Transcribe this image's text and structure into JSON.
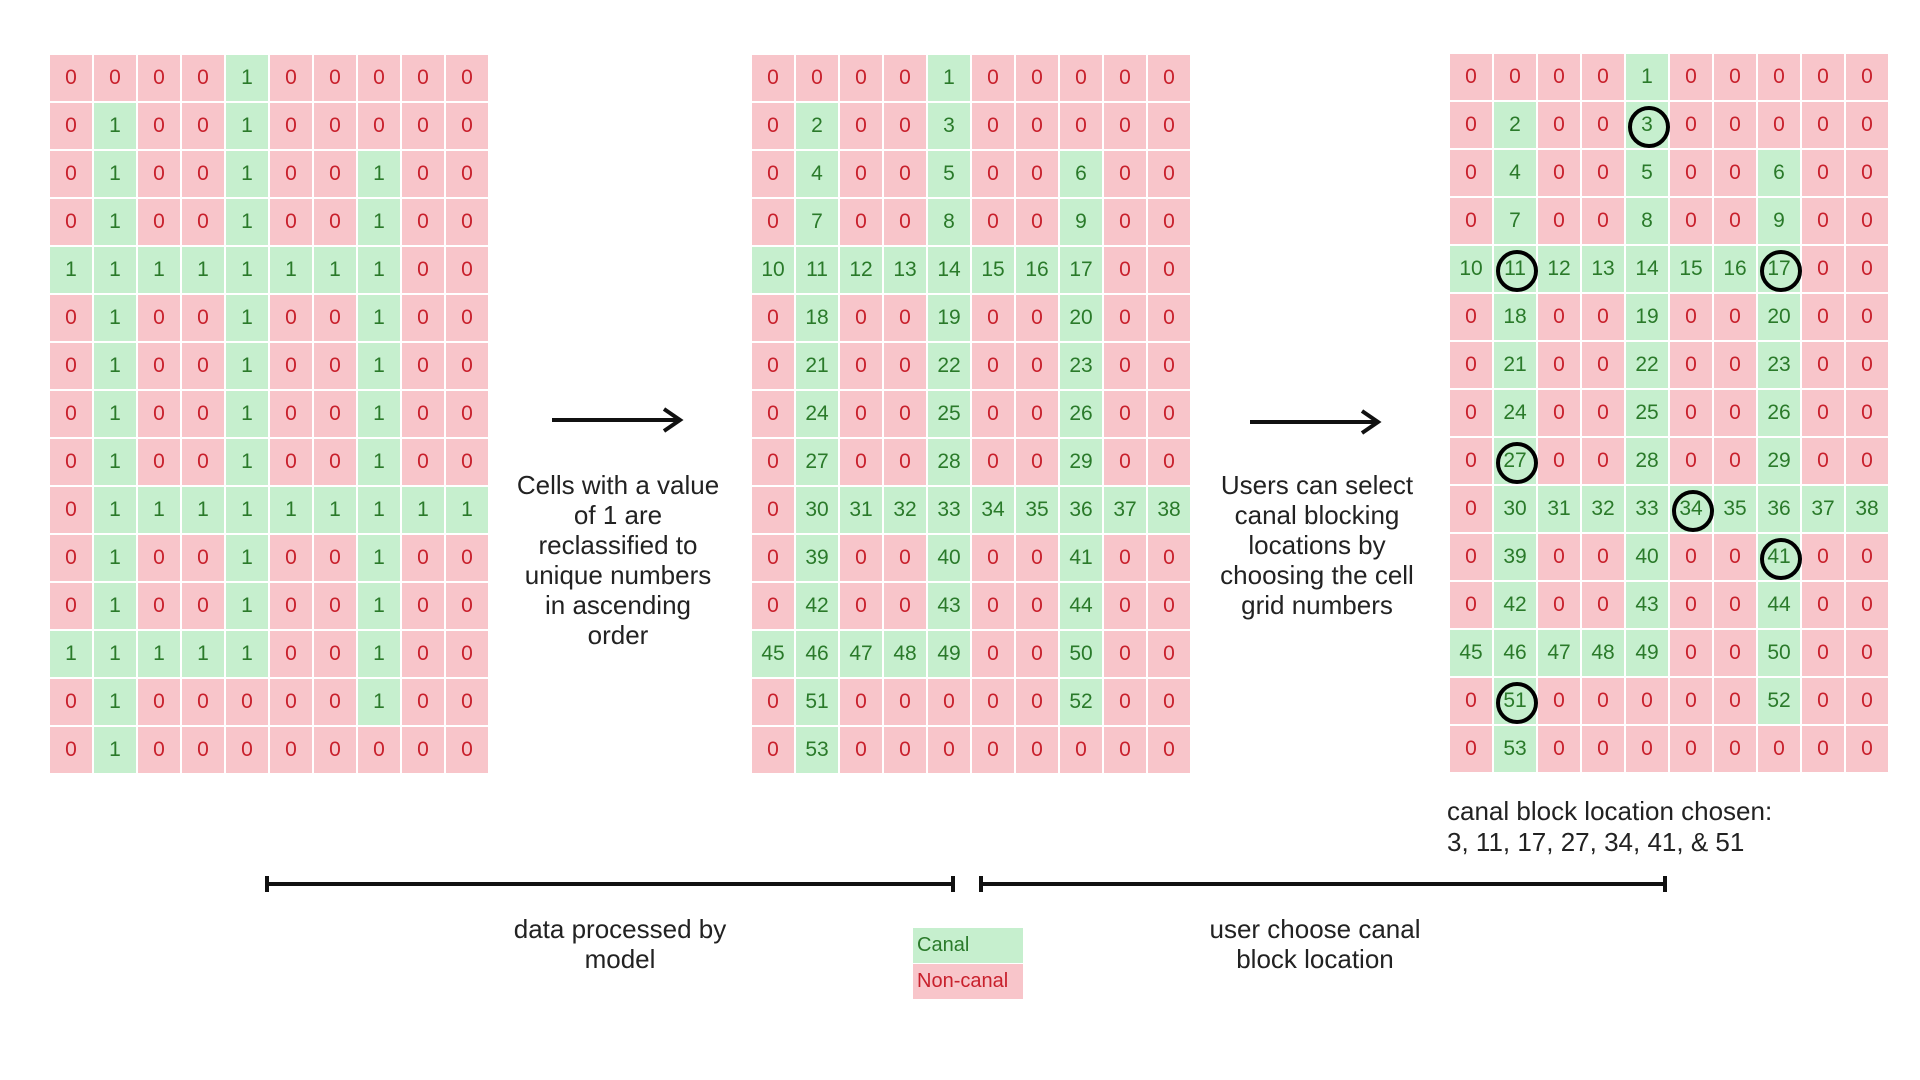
{
  "legend": {
    "canal_label": "Canal",
    "noncanal_label": "Non-canal",
    "canal_color": "#c6efce",
    "canal_text_color": "#2a7a2a",
    "noncanal_color": "#f8c5ca",
    "noncanal_text_color": "#c8202c"
  },
  "grids": {
    "input": [
      [
        0,
        0,
        0,
        0,
        1,
        0,
        0,
        0,
        0,
        0
      ],
      [
        0,
        1,
        0,
        0,
        1,
        0,
        0,
        0,
        0,
        0
      ],
      [
        0,
        1,
        0,
        0,
        1,
        0,
        0,
        1,
        0,
        0
      ],
      [
        0,
        1,
        0,
        0,
        1,
        0,
        0,
        1,
        0,
        0
      ],
      [
        1,
        1,
        1,
        1,
        1,
        1,
        1,
        1,
        0,
        0
      ],
      [
        0,
        1,
        0,
        0,
        1,
        0,
        0,
        1,
        0,
        0
      ],
      [
        0,
        1,
        0,
        0,
        1,
        0,
        0,
        1,
        0,
        0
      ],
      [
        0,
        1,
        0,
        0,
        1,
        0,
        0,
        1,
        0,
        0
      ],
      [
        0,
        1,
        0,
        0,
        1,
        0,
        0,
        1,
        0,
        0
      ],
      [
        0,
        1,
        1,
        1,
        1,
        1,
        1,
        1,
        1,
        1
      ],
      [
        0,
        1,
        0,
        0,
        1,
        0,
        0,
        1,
        0,
        0
      ],
      [
        0,
        1,
        0,
        0,
        1,
        0,
        0,
        1,
        0,
        0
      ],
      [
        1,
        1,
        1,
        1,
        1,
        0,
        0,
        1,
        0,
        0
      ],
      [
        0,
        1,
        0,
        0,
        0,
        0,
        0,
        1,
        0,
        0
      ],
      [
        0,
        1,
        0,
        0,
        0,
        0,
        0,
        0,
        0,
        0
      ]
    ],
    "numbered": [
      [
        0,
        0,
        0,
        0,
        1,
        0,
        0,
        0,
        0,
        0
      ],
      [
        0,
        2,
        0,
        0,
        3,
        0,
        0,
        0,
        0,
        0
      ],
      [
        0,
        4,
        0,
        0,
        5,
        0,
        0,
        6,
        0,
        0
      ],
      [
        0,
        7,
        0,
        0,
        8,
        0,
        0,
        9,
        0,
        0
      ],
      [
        10,
        11,
        12,
        13,
        14,
        15,
        16,
        17,
        0,
        0
      ],
      [
        0,
        18,
        0,
        0,
        19,
        0,
        0,
        20,
        0,
        0
      ],
      [
        0,
        21,
        0,
        0,
        22,
        0,
        0,
        23,
        0,
        0
      ],
      [
        0,
        24,
        0,
        0,
        25,
        0,
        0,
        26,
        0,
        0
      ],
      [
        0,
        27,
        0,
        0,
        28,
        0,
        0,
        29,
        0,
        0
      ],
      [
        0,
        30,
        31,
        32,
        33,
        34,
        35,
        36,
        37,
        38
      ],
      [
        0,
        39,
        0,
        0,
        40,
        0,
        0,
        41,
        0,
        0
      ],
      [
        0,
        42,
        0,
        0,
        43,
        0,
        0,
        44,
        0,
        0
      ],
      [
        45,
        46,
        47,
        48,
        49,
        0,
        0,
        50,
        0,
        0
      ],
      [
        0,
        51,
        0,
        0,
        0,
        0,
        0,
        52,
        0,
        0
      ],
      [
        0,
        53,
        0,
        0,
        0,
        0,
        0,
        0,
        0,
        0
      ]
    ],
    "selected_values": [
      3,
      11,
      17,
      27,
      34,
      41,
      51
    ]
  },
  "captions": {
    "reclassify": "Cells with a value of 1 are reclassified to unique numbers in ascending order",
    "select": "Users can select canal blocking locations by choosing the cell grid numbers",
    "chosen": "canal block location chosen:",
    "chosen_list": "3, 11, 17, 27, 34, 41, & 51",
    "model": "data processed by model",
    "user": "user choose canal block location"
  }
}
